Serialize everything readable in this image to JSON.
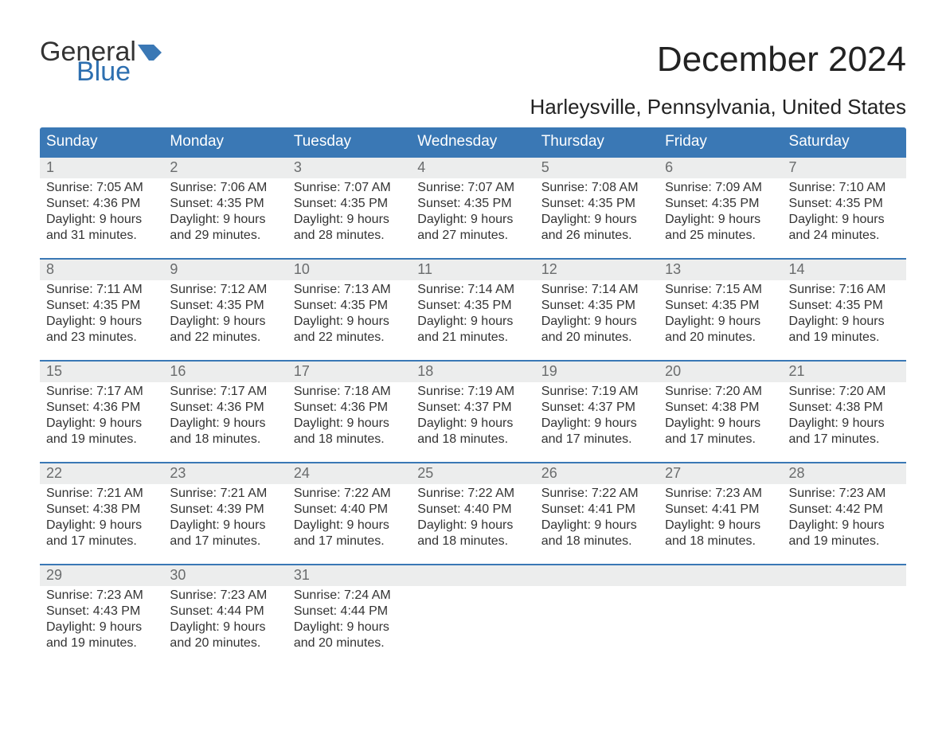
{
  "logo": {
    "text1": "General",
    "text2": "Blue"
  },
  "title": "December 2024",
  "location": "Harleysville, Pennsylvania, United States",
  "colors": {
    "header_bg": "#3a78b5",
    "header_text": "#ffffff",
    "daynum_bg": "#eceded",
    "daynum_text": "#6a6c6d",
    "body_text": "#333333",
    "week_border": "#3a78b5",
    "logo_blue": "#2d6fb0",
    "page_bg": "#ffffff"
  },
  "day_headers": [
    "Sunday",
    "Monday",
    "Tuesday",
    "Wednesday",
    "Thursday",
    "Friday",
    "Saturday"
  ],
  "weeks": [
    [
      {
        "num": "1",
        "sunrise": "Sunrise: 7:05 AM",
        "sunset": "Sunset: 4:36 PM",
        "day1": "Daylight: 9 hours",
        "day2": "and 31 minutes."
      },
      {
        "num": "2",
        "sunrise": "Sunrise: 7:06 AM",
        "sunset": "Sunset: 4:35 PM",
        "day1": "Daylight: 9 hours",
        "day2": "and 29 minutes."
      },
      {
        "num": "3",
        "sunrise": "Sunrise: 7:07 AM",
        "sunset": "Sunset: 4:35 PM",
        "day1": "Daylight: 9 hours",
        "day2": "and 28 minutes."
      },
      {
        "num": "4",
        "sunrise": "Sunrise: 7:07 AM",
        "sunset": "Sunset: 4:35 PM",
        "day1": "Daylight: 9 hours",
        "day2": "and 27 minutes."
      },
      {
        "num": "5",
        "sunrise": "Sunrise: 7:08 AM",
        "sunset": "Sunset: 4:35 PM",
        "day1": "Daylight: 9 hours",
        "day2": "and 26 minutes."
      },
      {
        "num": "6",
        "sunrise": "Sunrise: 7:09 AM",
        "sunset": "Sunset: 4:35 PM",
        "day1": "Daylight: 9 hours",
        "day2": "and 25 minutes."
      },
      {
        "num": "7",
        "sunrise": "Sunrise: 7:10 AM",
        "sunset": "Sunset: 4:35 PM",
        "day1": "Daylight: 9 hours",
        "day2": "and 24 minutes."
      }
    ],
    [
      {
        "num": "8",
        "sunrise": "Sunrise: 7:11 AM",
        "sunset": "Sunset: 4:35 PM",
        "day1": "Daylight: 9 hours",
        "day2": "and 23 minutes."
      },
      {
        "num": "9",
        "sunrise": "Sunrise: 7:12 AM",
        "sunset": "Sunset: 4:35 PM",
        "day1": "Daylight: 9 hours",
        "day2": "and 22 minutes."
      },
      {
        "num": "10",
        "sunrise": "Sunrise: 7:13 AM",
        "sunset": "Sunset: 4:35 PM",
        "day1": "Daylight: 9 hours",
        "day2": "and 22 minutes."
      },
      {
        "num": "11",
        "sunrise": "Sunrise: 7:14 AM",
        "sunset": "Sunset: 4:35 PM",
        "day1": "Daylight: 9 hours",
        "day2": "and 21 minutes."
      },
      {
        "num": "12",
        "sunrise": "Sunrise: 7:14 AM",
        "sunset": "Sunset: 4:35 PM",
        "day1": "Daylight: 9 hours",
        "day2": "and 20 minutes."
      },
      {
        "num": "13",
        "sunrise": "Sunrise: 7:15 AM",
        "sunset": "Sunset: 4:35 PM",
        "day1": "Daylight: 9 hours",
        "day2": "and 20 minutes."
      },
      {
        "num": "14",
        "sunrise": "Sunrise: 7:16 AM",
        "sunset": "Sunset: 4:35 PM",
        "day1": "Daylight: 9 hours",
        "day2": "and 19 minutes."
      }
    ],
    [
      {
        "num": "15",
        "sunrise": "Sunrise: 7:17 AM",
        "sunset": "Sunset: 4:36 PM",
        "day1": "Daylight: 9 hours",
        "day2": "and 19 minutes."
      },
      {
        "num": "16",
        "sunrise": "Sunrise: 7:17 AM",
        "sunset": "Sunset: 4:36 PM",
        "day1": "Daylight: 9 hours",
        "day2": "and 18 minutes."
      },
      {
        "num": "17",
        "sunrise": "Sunrise: 7:18 AM",
        "sunset": "Sunset: 4:36 PM",
        "day1": "Daylight: 9 hours",
        "day2": "and 18 minutes."
      },
      {
        "num": "18",
        "sunrise": "Sunrise: 7:19 AM",
        "sunset": "Sunset: 4:37 PM",
        "day1": "Daylight: 9 hours",
        "day2": "and 18 minutes."
      },
      {
        "num": "19",
        "sunrise": "Sunrise: 7:19 AM",
        "sunset": "Sunset: 4:37 PM",
        "day1": "Daylight: 9 hours",
        "day2": "and 17 minutes."
      },
      {
        "num": "20",
        "sunrise": "Sunrise: 7:20 AM",
        "sunset": "Sunset: 4:38 PM",
        "day1": "Daylight: 9 hours",
        "day2": "and 17 minutes."
      },
      {
        "num": "21",
        "sunrise": "Sunrise: 7:20 AM",
        "sunset": "Sunset: 4:38 PM",
        "day1": "Daylight: 9 hours",
        "day2": "and 17 minutes."
      }
    ],
    [
      {
        "num": "22",
        "sunrise": "Sunrise: 7:21 AM",
        "sunset": "Sunset: 4:38 PM",
        "day1": "Daylight: 9 hours",
        "day2": "and 17 minutes."
      },
      {
        "num": "23",
        "sunrise": "Sunrise: 7:21 AM",
        "sunset": "Sunset: 4:39 PM",
        "day1": "Daylight: 9 hours",
        "day2": "and 17 minutes."
      },
      {
        "num": "24",
        "sunrise": "Sunrise: 7:22 AM",
        "sunset": "Sunset: 4:40 PM",
        "day1": "Daylight: 9 hours",
        "day2": "and 17 minutes."
      },
      {
        "num": "25",
        "sunrise": "Sunrise: 7:22 AM",
        "sunset": "Sunset: 4:40 PM",
        "day1": "Daylight: 9 hours",
        "day2": "and 18 minutes."
      },
      {
        "num": "26",
        "sunrise": "Sunrise: 7:22 AM",
        "sunset": "Sunset: 4:41 PM",
        "day1": "Daylight: 9 hours",
        "day2": "and 18 minutes."
      },
      {
        "num": "27",
        "sunrise": "Sunrise: 7:23 AM",
        "sunset": "Sunset: 4:41 PM",
        "day1": "Daylight: 9 hours",
        "day2": "and 18 minutes."
      },
      {
        "num": "28",
        "sunrise": "Sunrise: 7:23 AM",
        "sunset": "Sunset: 4:42 PM",
        "day1": "Daylight: 9 hours",
        "day2": "and 19 minutes."
      }
    ],
    [
      {
        "num": "29",
        "sunrise": "Sunrise: 7:23 AM",
        "sunset": "Sunset: 4:43 PM",
        "day1": "Daylight: 9 hours",
        "day2": "and 19 minutes."
      },
      {
        "num": "30",
        "sunrise": "Sunrise: 7:23 AM",
        "sunset": "Sunset: 4:44 PM",
        "day1": "Daylight: 9 hours",
        "day2": "and 20 minutes."
      },
      {
        "num": "31",
        "sunrise": "Sunrise: 7:24 AM",
        "sunset": "Sunset: 4:44 PM",
        "day1": "Daylight: 9 hours",
        "day2": "and 20 minutes."
      },
      {
        "num": "",
        "sunrise": "",
        "sunset": "",
        "day1": "",
        "day2": ""
      },
      {
        "num": "",
        "sunrise": "",
        "sunset": "",
        "day1": "",
        "day2": ""
      },
      {
        "num": "",
        "sunrise": "",
        "sunset": "",
        "day1": "",
        "day2": ""
      },
      {
        "num": "",
        "sunrise": "",
        "sunset": "",
        "day1": "",
        "day2": ""
      }
    ]
  ]
}
